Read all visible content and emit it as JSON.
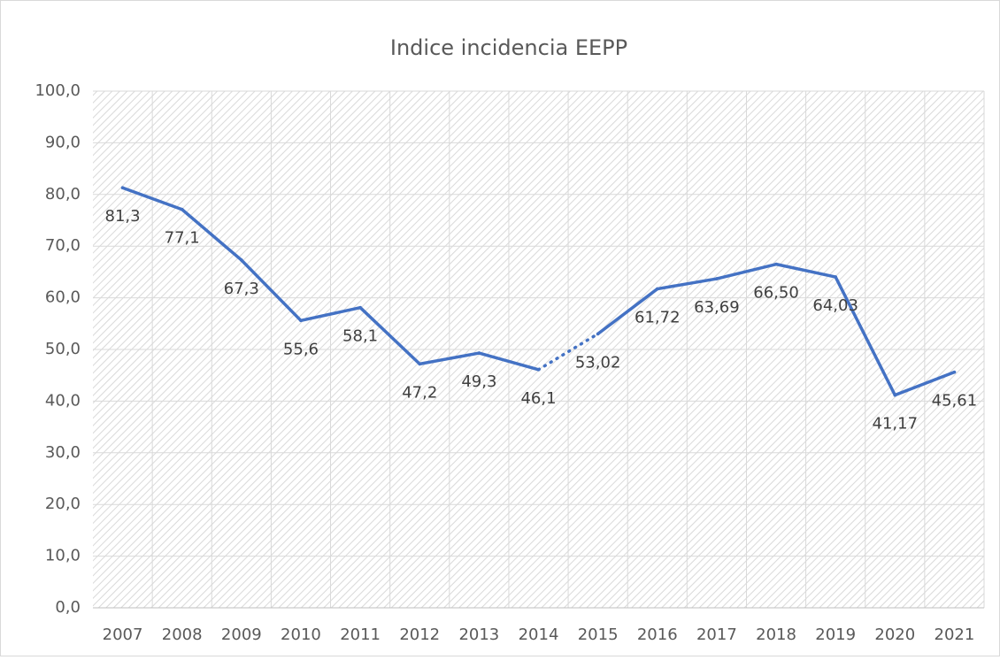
{
  "chart_data": {
    "type": "line",
    "title": "Indice incidencia EEPP",
    "categories": [
      "2007",
      "2008",
      "2009",
      "2010",
      "2011",
      "2012",
      "2013",
      "2014",
      "2015",
      "2016",
      "2017",
      "2018",
      "2019",
      "2020",
      "2021"
    ],
    "series": [
      {
        "color": "#4472c4",
        "values": [
          81.3,
          77.1,
          67.3,
          55.6,
          58.1,
          47.2,
          49.3,
          46.1,
          53.02,
          61.72,
          63.69,
          66.5,
          64.03,
          41.17,
          45.61
        ],
        "value_labels": [
          "81,3",
          "77,1",
          "67,3",
          "55,6",
          "58,1",
          "47,2",
          "49,3",
          "46,1",
          "53,02",
          "61,72",
          "63,69",
          "66,50",
          "64,03",
          "41,17",
          "45,61"
        ],
        "segment_styles": [
          "solid",
          "solid",
          "solid",
          "solid",
          "solid",
          "solid",
          "solid",
          "dotted",
          "solid",
          "solid",
          "solid",
          "solid",
          "solid",
          "solid"
        ]
      }
    ],
    "ylim": [
      0,
      100
    ],
    "yticks": [
      {
        "value": 0,
        "label": "0,0"
      },
      {
        "value": 10,
        "label": "10,0"
      },
      {
        "value": 20,
        "label": "20,0"
      },
      {
        "value": 30,
        "label": "30,0"
      },
      {
        "value": 40,
        "label": "40,0"
      },
      {
        "value": 50,
        "label": "50,0"
      },
      {
        "value": 60,
        "label": "60,0"
      },
      {
        "value": 70,
        "label": "70,0"
      },
      {
        "value": 80,
        "label": "80,0"
      },
      {
        "value": 90,
        "label": "90,0"
      },
      {
        "value": 100,
        "label": "100,0"
      }
    ],
    "grid": true
  }
}
